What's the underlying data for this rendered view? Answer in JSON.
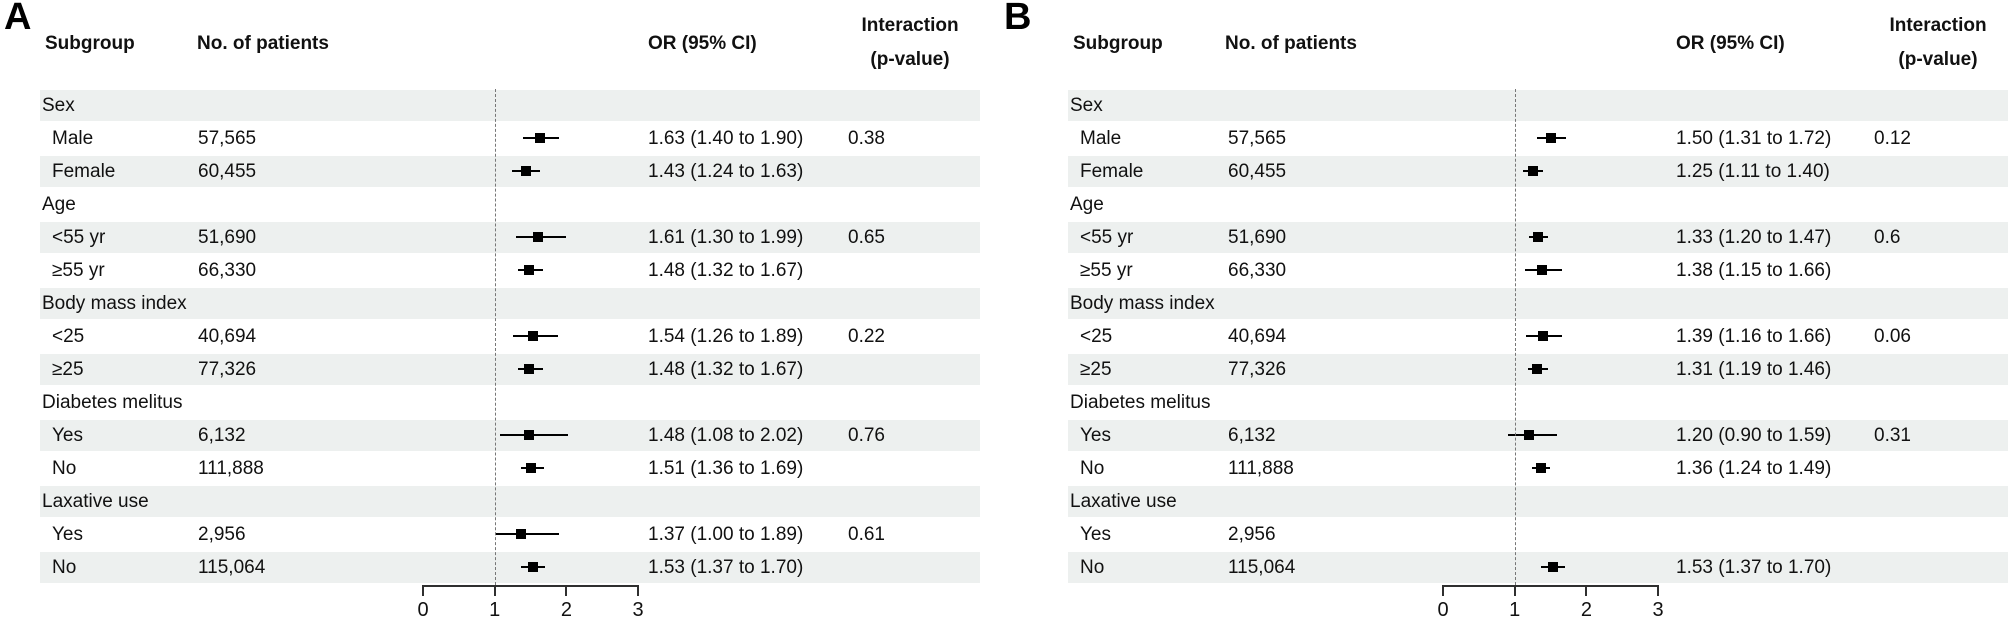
{
  "style": {
    "band_color": "#edf0ef",
    "marker_color": "#000000",
    "axis_color": "#2f2f2f",
    "text_color": "#111111"
  },
  "chart_data": [
    {
      "type": "scatter",
      "variant": "forest-plot",
      "panel": "A",
      "headers": {
        "subgroup": "Subgroup",
        "patients": "No. of patients",
        "or": "OR (95% CI)",
        "interaction_line1": "Interaction",
        "interaction_line2": "(p-value)"
      },
      "xlabel": "",
      "xlim": [
        0,
        3
      ],
      "x_ticks": [
        0,
        1,
        2,
        3
      ],
      "x_tick_labels": [
        "0",
        "1",
        "2",
        "3"
      ],
      "ref_line": 1,
      "rows": [
        {
          "kind": "group",
          "label": "Sex"
        },
        {
          "kind": "item",
          "label": "Male",
          "n": "57,565",
          "or": 1.63,
          "ci": [
            1.4,
            1.9
          ],
          "or_text": "1.63 (1.40 to 1.90)",
          "p_interaction": "0.38"
        },
        {
          "kind": "item",
          "label": "Female",
          "n": "60,455",
          "or": 1.43,
          "ci": [
            1.24,
            1.63
          ],
          "or_text": "1.43 (1.24 to 1.63)"
        },
        {
          "kind": "group",
          "label": "Age"
        },
        {
          "kind": "item",
          "label": "<55 yr",
          "n": "51,690",
          "or": 1.61,
          "ci": [
            1.3,
            1.99
          ],
          "or_text": "1.61 (1.30 to 1.99)",
          "p_interaction": "0.65"
        },
        {
          "kind": "item",
          "label": "≥55 yr",
          "n": "66,330",
          "or": 1.48,
          "ci": [
            1.32,
            1.67
          ],
          "or_text": "1.48 (1.32 to 1.67)"
        },
        {
          "kind": "group",
          "label": "Body mass index"
        },
        {
          "kind": "item",
          "label": "<25",
          "n": "40,694",
          "or": 1.54,
          "ci": [
            1.26,
            1.89
          ],
          "or_text": "1.54 (1.26 to 1.89)",
          "p_interaction": "0.22"
        },
        {
          "kind": "item",
          "label": "≥25",
          "n": "77,326",
          "or": 1.48,
          "ci": [
            1.32,
            1.67
          ],
          "or_text": "1.48 (1.32 to 1.67)"
        },
        {
          "kind": "group",
          "label": "Diabetes melitus"
        },
        {
          "kind": "item",
          "label": "Yes",
          "n": "6,132",
          "or": 1.48,
          "ci": [
            1.08,
            2.02
          ],
          "or_text": "1.48 (1.08 to 2.02)",
          "p_interaction": "0.76"
        },
        {
          "kind": "item",
          "label": "No",
          "n": "111,888",
          "or": 1.51,
          "ci": [
            1.36,
            1.69
          ],
          "or_text": "1.51 (1.36 to 1.69)"
        },
        {
          "kind": "group",
          "label": "Laxative use"
        },
        {
          "kind": "item",
          "label": "Yes",
          "n": "2,956",
          "or": 1.37,
          "ci": [
            1.0,
            1.89
          ],
          "or_text": "1.37 (1.00 to 1.89)",
          "p_interaction": "0.61"
        },
        {
          "kind": "item",
          "label": "No",
          "n": "115,064",
          "or": 1.53,
          "ci": [
            1.37,
            1.7
          ],
          "or_text": "1.53 (1.37 to 1.70)"
        }
      ]
    },
    {
      "type": "scatter",
      "variant": "forest-plot",
      "panel": "B",
      "headers": {
        "subgroup": "Subgroup",
        "patients": "No. of patients",
        "or": "OR (95% CI)",
        "interaction_line1": "Interaction",
        "interaction_line2": "(p-value)"
      },
      "xlabel": "",
      "xlim": [
        0,
        3
      ],
      "x_ticks": [
        0,
        1,
        2,
        3
      ],
      "x_tick_labels": [
        "0",
        "1",
        "2",
        "3"
      ],
      "ref_line": 1,
      "rows": [
        {
          "kind": "group",
          "label": "Sex"
        },
        {
          "kind": "item",
          "label": "Male",
          "n": "57,565",
          "or": 1.5,
          "ci": [
            1.31,
            1.72
          ],
          "or_text": "1.50 (1.31 to 1.72)",
          "p_interaction": "0.12"
        },
        {
          "kind": "item",
          "label": "Female",
          "n": "60,455",
          "or": 1.25,
          "ci": [
            1.11,
            1.4
          ],
          "or_text": "1.25 (1.11 to 1.40)"
        },
        {
          "kind": "group",
          "label": "Age"
        },
        {
          "kind": "item",
          "label": "<55 yr",
          "n": "51,690",
          "or": 1.33,
          "ci": [
            1.2,
            1.47
          ],
          "or_text": "1.33 (1.20 to 1.47)",
          "p_interaction": "0.6"
        },
        {
          "kind": "item",
          "label": "≥55 yr",
          "n": "66,330",
          "or": 1.38,
          "ci": [
            1.15,
            1.66
          ],
          "or_text": "1.38 (1.15 to 1.66)"
        },
        {
          "kind": "group",
          "label": "Body mass index"
        },
        {
          "kind": "item",
          "label": "<25",
          "n": "40,694",
          "or": 1.39,
          "ci": [
            1.16,
            1.66
          ],
          "or_text": "1.39 (1.16 to 1.66)",
          "p_interaction": "0.06"
        },
        {
          "kind": "item",
          "label": "≥25",
          "n": "77,326",
          "or": 1.31,
          "ci": [
            1.19,
            1.46
          ],
          "or_text": "1.31 (1.19 to 1.46)"
        },
        {
          "kind": "group",
          "label": "Diabetes melitus"
        },
        {
          "kind": "item",
          "label": "Yes",
          "n": "6,132",
          "or": 1.2,
          "ci": [
            0.9,
            1.59
          ],
          "or_text": "1.20 (0.90 to 1.59)",
          "p_interaction": "0.31"
        },
        {
          "kind": "item",
          "label": "No",
          "n": "111,888",
          "or": 1.36,
          "ci": [
            1.24,
            1.49
          ],
          "or_text": "1.36 (1.24 to 1.49)"
        },
        {
          "kind": "group",
          "label": "Laxative use"
        },
        {
          "kind": "item",
          "label": "Yes",
          "n": "2,956"
        },
        {
          "kind": "item",
          "label": "No",
          "n": "115,064",
          "or": 1.53,
          "ci": [
            1.37,
            1.7
          ],
          "or_text": "1.53 (1.37 to 1.70)"
        }
      ]
    }
  ]
}
